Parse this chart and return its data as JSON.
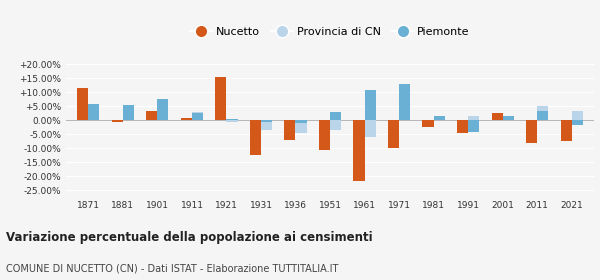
{
  "years": [
    1871,
    1881,
    1901,
    1911,
    1921,
    1931,
    1936,
    1951,
    1961,
    1971,
    1981,
    1991,
    2001,
    2011,
    2021
  ],
  "nucetto": [
    11.5,
    -0.5,
    3.5,
    1.0,
    15.5,
    -12.5,
    -7.0,
    -10.5,
    -21.5,
    -10.0,
    -2.5,
    -4.5,
    2.5,
    -8.0,
    -7.5
  ],
  "provincia_cn": [
    3.0,
    2.0,
    2.0,
    3.0,
    -0.5,
    -3.5,
    -4.5,
    -3.5,
    -6.0,
    0.5,
    1.5,
    1.5,
    1.5,
    5.0,
    3.5
  ],
  "piemonte": [
    6.0,
    5.5,
    7.5,
    2.5,
    0.5,
    -0.5,
    -1.0,
    3.0,
    11.0,
    13.0,
    1.5,
    -4.0,
    1.5,
    3.5,
    -1.5
  ],
  "color_nucetto": "#d4581a",
  "color_provincia": "#bad4ea",
  "color_piemonte": "#6aafd4",
  "title": "Variazione percentuale della popolazione ai censimenti",
  "subtitle": "COMUNE DI NUCETTO (CN) - Dati ISTAT - Elaborazione TUTTITALIA.IT",
  "yticks": [
    -25,
    -20,
    -15,
    -10,
    -5,
    0,
    5,
    10,
    15,
    20
  ],
  "ylim": [
    -27,
    23
  ],
  "background_color": "#f5f5f5",
  "grid_color": "#ffffff"
}
